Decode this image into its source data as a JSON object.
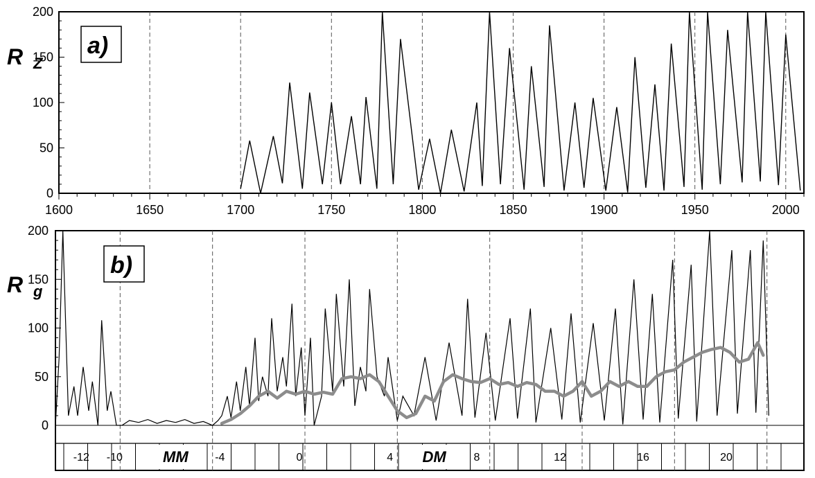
{
  "chart_data": [
    {
      "type": "line",
      "panel_label": "a)",
      "ylabel_main": "R",
      "ylabel_sub": "Z",
      "xlim": [
        1600,
        2010
      ],
      "ylim": [
        0,
        200
      ],
      "x_ticks": [
        1600,
        1650,
        1700,
        1750,
        1800,
        1850,
        1900,
        1950,
        2000
      ],
      "y_ticks": [
        0,
        50,
        100,
        150,
        200
      ],
      "vertical_dashed_lines": [
        1650,
        1700,
        1750,
        1800,
        1850,
        1900,
        1950,
        2000
      ],
      "series": [
        {
          "color": "#000000",
          "x": [
            1700,
            1705,
            1711,
            1718,
            1723,
            1727,
            1734,
            1738,
            1745,
            1750,
            1755,
            1761,
            1766,
            1769,
            1775,
            1778,
            1784,
            1788,
            1798,
            1804,
            1810,
            1816,
            1823,
            1830,
            1833,
            1837,
            1843,
            1848,
            1856,
            1860,
            1867,
            1870,
            1878,
            1884,
            1889,
            1894,
            1901,
            1907,
            1913,
            1917,
            1923,
            1928,
            1933,
            1937,
            1944,
            1947,
            1954,
            1957,
            1964,
            1968,
            1976,
            1979,
            1986,
            1989,
            1996,
            2000,
            2008
          ],
          "y": [
            5,
            58,
            0,
            63,
            11,
            122,
            5,
            111,
            10,
            100,
            10,
            85,
            10,
            106,
            5,
            200,
            10,
            170,
            4,
            60,
            0,
            70,
            2,
            100,
            8,
            210,
            10,
            160,
            4,
            140,
            7,
            185,
            3,
            100,
            6,
            105,
            3,
            95,
            1,
            150,
            6,
            120,
            3,
            165,
            7,
            200,
            4,
            250,
            10,
            180,
            12,
            215,
            13,
            205,
            9,
            175,
            3
          ]
        }
      ]
    },
    {
      "type": "line",
      "panel_label": "b)",
      "ylabel_main": "R",
      "ylabel_sub": "g",
      "xlim": [
        1610,
        2015
      ],
      "ylim": [
        0,
        200
      ],
      "y_ticks": [
        0,
        50,
        100,
        150,
        200
      ],
      "vertical_dashed_lines": [
        1645,
        1695,
        1745,
        1795,
        1845,
        1895,
        1945,
        1995
      ],
      "series": [
        {
          "color": "#000000",
          "x": [
            1610,
            1612,
            1614,
            1617,
            1620,
            1622,
            1625,
            1628,
            1630,
            1633,
            1635,
            1638,
            1640,
            1643,
            1646,
            1650,
            1655,
            1660,
            1665,
            1670,
            1675,
            1680,
            1685,
            1690,
            1695,
            1698,
            1700,
            1703,
            1705,
            1708,
            1710,
            1713,
            1715,
            1718,
            1720,
            1722,
            1725,
            1727,
            1730,
            1733,
            1735,
            1738,
            1740,
            1743,
            1745,
            1748,
            1750,
            1754,
            1756,
            1760,
            1762,
            1766,
            1769,
            1772,
            1775,
            1778,
            1780,
            1784,
            1788,
            1790,
            1795,
            1798,
            1804,
            1810,
            1816,
            1823,
            1830,
            1833,
            1837,
            1843,
            1848,
            1856,
            1860,
            1867,
            1870,
            1878,
            1884,
            1889,
            1894,
            1901,
            1907,
            1913,
            1917,
            1923,
            1928,
            1933,
            1937,
            1944,
            1947,
            1954,
            1957,
            1964,
            1968,
            1976,
            1979,
            1986,
            1989,
            1993,
            1996
          ],
          "y": [
            0,
            70,
            200,
            10,
            40,
            10,
            60,
            15,
            45,
            0,
            108,
            15,
            35,
            0,
            0,
            5,
            3,
            6,
            2,
            5,
            3,
            6,
            2,
            4,
            0,
            5,
            10,
            30,
            8,
            45,
            15,
            60,
            20,
            90,
            25,
            50,
            30,
            110,
            35,
            70,
            40,
            125,
            30,
            80,
            10,
            90,
            0,
            30,
            120,
            35,
            135,
            40,
            150,
            20,
            60,
            35,
            140,
            50,
            30,
            70,
            5,
            30,
            10,
            70,
            5,
            85,
            10,
            130,
            8,
            95,
            5,
            110,
            7,
            120,
            3,
            100,
            6,
            115,
            3,
            105,
            5,
            120,
            1,
            150,
            6,
            135,
            3,
            170,
            7,
            165,
            4,
            210,
            10,
            180,
            12,
            180,
            13,
            190,
            10
          ]
        },
        {
          "color": "#8c8c8c",
          "x": [
            1700,
            1705,
            1710,
            1715,
            1720,
            1725,
            1730,
            1735,
            1740,
            1745,
            1750,
            1755,
            1760,
            1765,
            1770,
            1775,
            1780,
            1785,
            1790,
            1795,
            1800,
            1805,
            1810,
            1815,
            1820,
            1825,
            1830,
            1835,
            1840,
            1845,
            1850,
            1855,
            1860,
            1865,
            1870,
            1875,
            1880,
            1885,
            1890,
            1895,
            1900,
            1905,
            1910,
            1915,
            1920,
            1925,
            1930,
            1935,
            1940,
            1945,
            1950,
            1955,
            1960,
            1965,
            1970,
            1975,
            1980,
            1985,
            1990,
            1993
          ],
          "y": [
            2,
            6,
            12,
            20,
            30,
            35,
            28,
            35,
            32,
            35,
            32,
            34,
            32,
            48,
            50,
            48,
            52,
            45,
            30,
            15,
            8,
            12,
            30,
            25,
            45,
            52,
            48,
            45,
            44,
            48,
            42,
            44,
            40,
            44,
            42,
            35,
            35,
            30,
            35,
            45,
            30,
            35,
            45,
            40,
            45,
            40,
            40,
            50,
            55,
            57,
            65,
            70,
            75,
            78,
            80,
            75,
            65,
            68,
            85,
            72
          ]
        }
      ],
      "cycle_bar": {
        "labels": [
          {
            "text": "-12",
            "x": 1624
          },
          {
            "text": "-10",
            "x": 1642
          },
          {
            "text": "-4",
            "x": 1699
          },
          {
            "text": "0",
            "x": 1742
          },
          {
            "text": "4",
            "x": 1791
          },
          {
            "text": "8",
            "x": 1838
          },
          {
            "text": "12",
            "x": 1883
          },
          {
            "text": "16",
            "x": 1928
          },
          {
            "text": "20",
            "x": 1973
          }
        ],
        "minima": [
          {
            "text": "MM",
            "x": 1675
          },
          {
            "text": "DM",
            "x": 1815
          }
        ]
      }
    }
  ]
}
